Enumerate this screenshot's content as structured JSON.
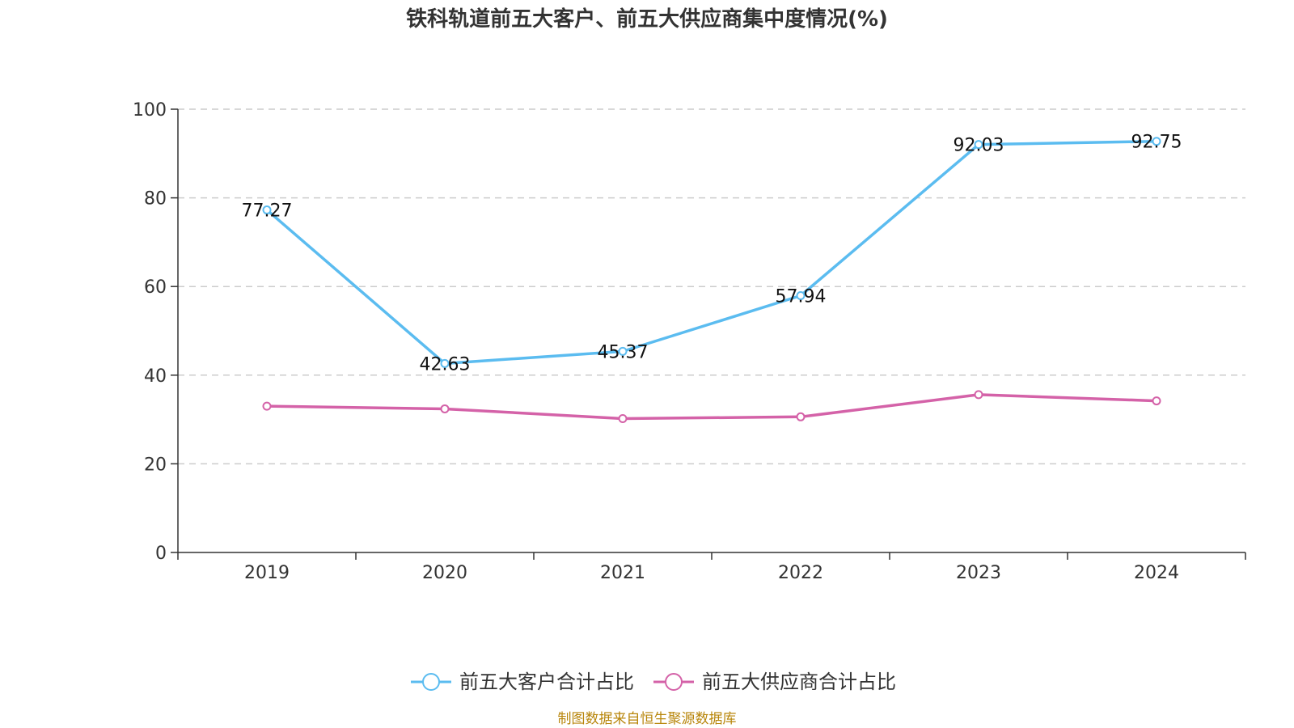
{
  "chart_data": {
    "type": "line",
    "title": "铁科轨道前五大客户、前五大供应商集中度情况(%)",
    "categories": [
      "2019",
      "2020",
      "2021",
      "2022",
      "2023",
      "2024"
    ],
    "ylim": [
      0,
      100
    ],
    "yticks": [
      0,
      20,
      40,
      60,
      80,
      100
    ],
    "grid": true,
    "legend_position": "bottom",
    "series": [
      {
        "name": "前五大客户合计占比",
        "color": "#5bbcf0",
        "values": [
          77.27,
          42.63,
          45.37,
          57.94,
          92.03,
          92.75
        ],
        "labels": [
          "77.27",
          "42.63",
          "45.37",
          "57.94",
          "92.03",
          "92.75"
        ],
        "show_labels": true
      },
      {
        "name": "前五大供应商合计占比",
        "color": "#d462a8",
        "values": [
          33.0,
          32.4,
          30.2,
          30.6,
          35.6,
          34.2
        ],
        "show_labels": false
      }
    ],
    "source": "制图数据来自恒生聚源数据库"
  }
}
